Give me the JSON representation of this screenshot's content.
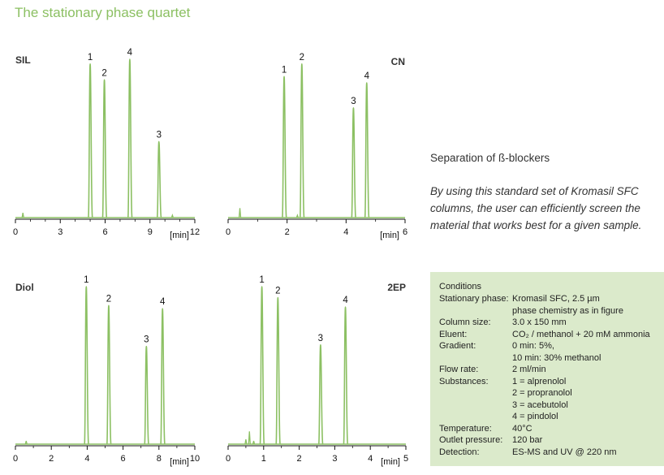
{
  "page_title": "The stationary phase quartet",
  "separation": {
    "title": "Separation of ß-blockers",
    "description": "By using this standard set of Kromasil SFC columns, the user can efficiently screen the material that works best for a given sample."
  },
  "conditions": {
    "heading": "Conditions",
    "rows": [
      {
        "label": "Stationary phase:",
        "value": "Kromasil SFC, 2.5 µm"
      },
      {
        "label": "",
        "value": "phase chemistry as in figure"
      },
      {
        "label": "Column size:",
        "value": "3.0 x 150 mm"
      },
      {
        "label": "Eluent:",
        "value": "CO₂ / methanol + 20 mM ammonia"
      },
      {
        "label": "Gradient:",
        "value": "0 min: 5%,"
      },
      {
        "label": "",
        "value": "10 min: 30% methanol"
      },
      {
        "label": "Flow rate:",
        "value": "2 ml/min"
      },
      {
        "label": "Substances:",
        "value": "1 = alprenolol"
      },
      {
        "label": "",
        "value": "2 = propranolol"
      },
      {
        "label": "",
        "value": "3 = acebutolol"
      },
      {
        "label": "",
        "value": "4 = pindolol"
      },
      {
        "label": "Temperature:",
        "value": "40°C"
      },
      {
        "label": "Outlet pressure:",
        "value": "120 bar"
      },
      {
        "label": "Detection:",
        "value": "ES-MS and UV @ 220 nm"
      }
    ]
  },
  "chart_data": [
    {
      "type": "line",
      "label": "SIL",
      "label_side": "left",
      "xlabel": "[min]",
      "xlim": [
        0,
        12
      ],
      "xticks": [
        0,
        3,
        6,
        9,
        12
      ],
      "ylim": [
        0,
        100
      ],
      "color": "#8cc063",
      "peaks": [
        {
          "id": "1",
          "x": 5.0,
          "height": 97
        },
        {
          "id": "2",
          "x": 5.95,
          "height": 87
        },
        {
          "id": "4",
          "x": 7.65,
          "height": 100
        },
        {
          "id": "3",
          "x": 9.6,
          "height": 48
        }
      ],
      "artifacts": [
        {
          "x": 0.5,
          "height": 3
        },
        {
          "x": 10.5,
          "height": 1.5
        }
      ]
    },
    {
      "type": "line",
      "label": "CN",
      "label_side": "right",
      "xlabel": "[min]",
      "xlim": [
        0,
        6
      ],
      "xticks": [
        0,
        2,
        4,
        6
      ],
      "ylim": [
        0,
        100
      ],
      "color": "#8cc063",
      "peaks": [
        {
          "id": "1",
          "x": 1.9,
          "height": 90
        },
        {
          "id": "2",
          "x": 2.5,
          "height": 98
        },
        {
          "id": "3",
          "x": 4.25,
          "height": 70
        },
        {
          "id": "4",
          "x": 4.7,
          "height": 86
        }
      ],
      "artifacts": [
        {
          "x": 0.4,
          "height": 6
        },
        {
          "x": 2.35,
          "height": 1.5
        }
      ]
    },
    {
      "type": "line",
      "label": "Diol",
      "label_side": "left",
      "xlabel": "[min]",
      "xlim": [
        0,
        10
      ],
      "xticks": [
        0,
        2,
        4,
        6,
        8,
        10
      ],
      "ylim": [
        0,
        100
      ],
      "color": "#8cc063",
      "peaks": [
        {
          "id": "1",
          "x": 3.95,
          "height": 100
        },
        {
          "id": "2",
          "x": 5.2,
          "height": 88
        },
        {
          "id": "3",
          "x": 7.3,
          "height": 62
        },
        {
          "id": "4",
          "x": 8.2,
          "height": 86
        }
      ],
      "artifacts": [
        {
          "x": 0.6,
          "height": 2
        }
      ]
    },
    {
      "type": "line",
      "label": "2EP",
      "label_side": "right",
      "xlabel": "[min]",
      "xlim": [
        0,
        5
      ],
      "xticks": [
        0,
        1,
        2,
        3,
        4,
        5
      ],
      "ylim": [
        0,
        100
      ],
      "color": "#8cc063",
      "peaks": [
        {
          "id": "1",
          "x": 0.95,
          "height": 100
        },
        {
          "id": "2",
          "x": 1.4,
          "height": 93
        },
        {
          "id": "3",
          "x": 2.6,
          "height": 63
        },
        {
          "id": "4",
          "x": 3.3,
          "height": 87
        }
      ],
      "artifacts": [
        {
          "x": 0.5,
          "height": 3
        },
        {
          "x": 0.6,
          "height": 8
        },
        {
          "x": 0.72,
          "height": 2
        }
      ]
    }
  ]
}
